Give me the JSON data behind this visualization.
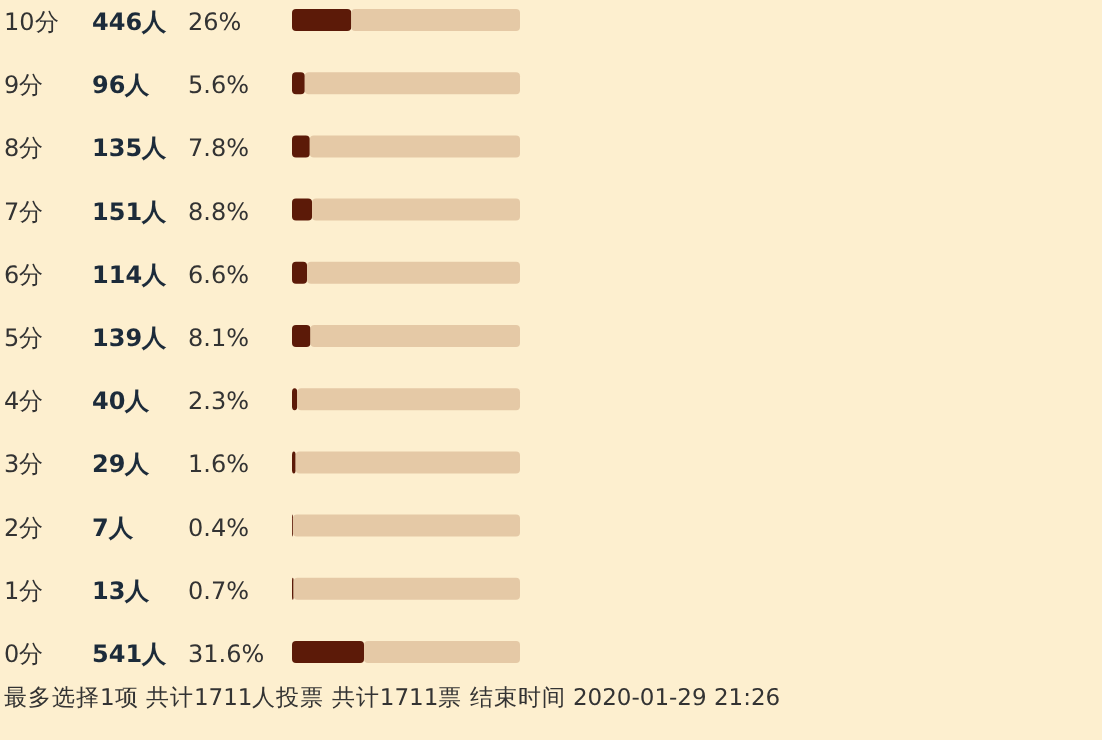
{
  "chart_data": {
    "type": "bar",
    "orientation": "horizontal",
    "stacked": true,
    "categories": [
      "10分",
      "9分",
      "8分",
      "7分",
      "6分",
      "5分",
      "4分",
      "3分",
      "2分",
      "1分",
      "0分"
    ],
    "series": [
      {
        "color": "#5c1a08",
        "values": [
          26,
          5.6,
          7.8,
          8.8,
          6.6,
          8.1,
          2.3,
          1.6,
          0.4,
          0.7,
          31.6
        ],
        "value_labels": [
          "26%",
          "5.6%",
          "7.8%",
          "8.8%",
          "6.6%",
          "8.1%",
          "2.3%",
          "1.6%",
          "0.4%",
          "0.7%",
          "31.6%"
        ]
      },
      {
        "color": "#e5c9a6",
        "values": [
          74,
          94.4,
          92.2,
          91.2,
          93.4,
          91.9,
          97.7,
          98.4,
          99.6,
          99.3,
          68.4
        ]
      }
    ],
    "xlim": [
      0,
      100
    ],
    "annotations": [
      "446人",
      "96人",
      "135人",
      "151人",
      "114人",
      "139人",
      "40人",
      "29人",
      "7人",
      "13人",
      "541人",
      "最多选择1项 共计1711人投票 共计1711票 结束时间 2020-01-29 21:26"
    ]
  }
}
